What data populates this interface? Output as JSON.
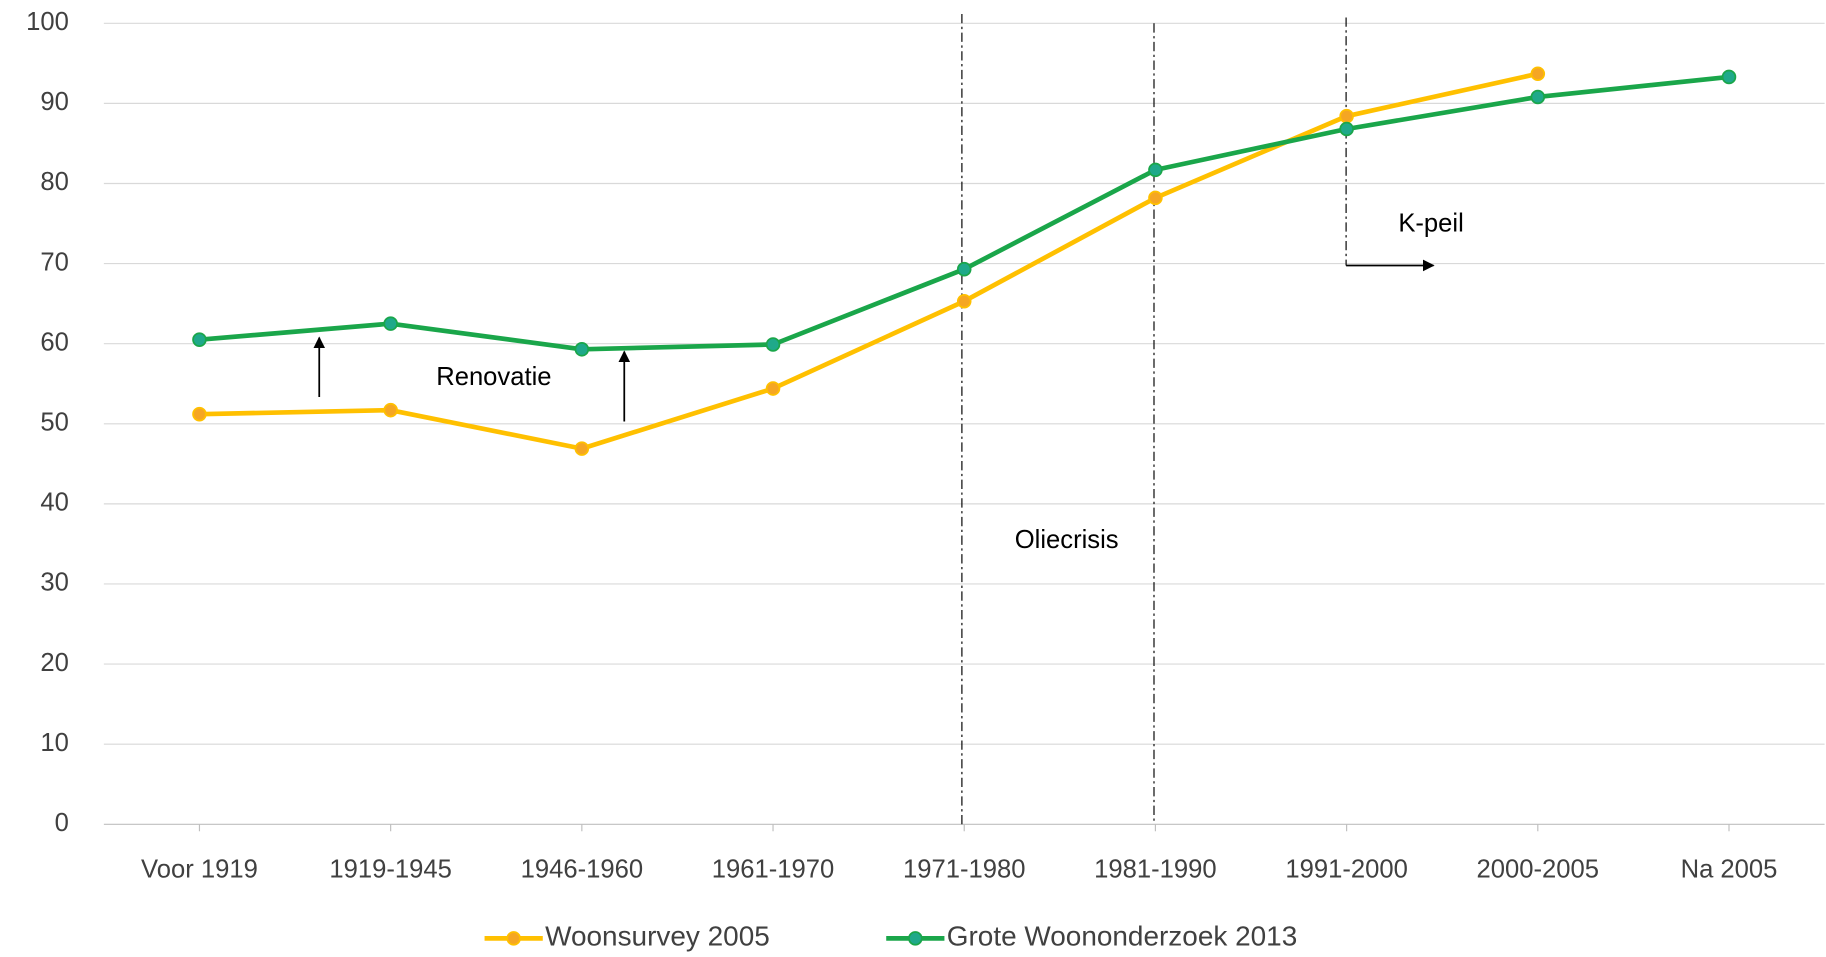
{
  "chart_data": {
    "type": "line",
    "categories": [
      "Voor 1919",
      "1919-1945",
      "1946-1960",
      "1961-1970",
      "1971-1980",
      "1981-1990",
      "1991-2000",
      "2000-2005",
      "Na 2005"
    ],
    "series": [
      {
        "name": "Woonsurvey 2005",
        "color": "#FFC000",
        "marker_color": "#F5A623",
        "values": [
          51.2,
          51.7,
          46.9,
          54.4,
          65.3,
          78.2,
          88.4,
          93.7,
          null
        ]
      },
      {
        "name": "Grote Woononderzoek 2013",
        "color": "#1AA64A",
        "marker_color": "#1FA98A",
        "values": [
          60.5,
          62.5,
          59.3,
          59.9,
          69.3,
          81.7,
          86.8,
          90.8,
          93.3
        ]
      }
    ],
    "ylim": [
      0,
      100
    ],
    "yticks": [
      0,
      10,
      20,
      30,
      40,
      50,
      60,
      70,
      80,
      90,
      100
    ],
    "grid": true,
    "legend": "bottom",
    "annotations": [
      "Renovatie",
      "Oliecrisis",
      "K-peil"
    ]
  }
}
